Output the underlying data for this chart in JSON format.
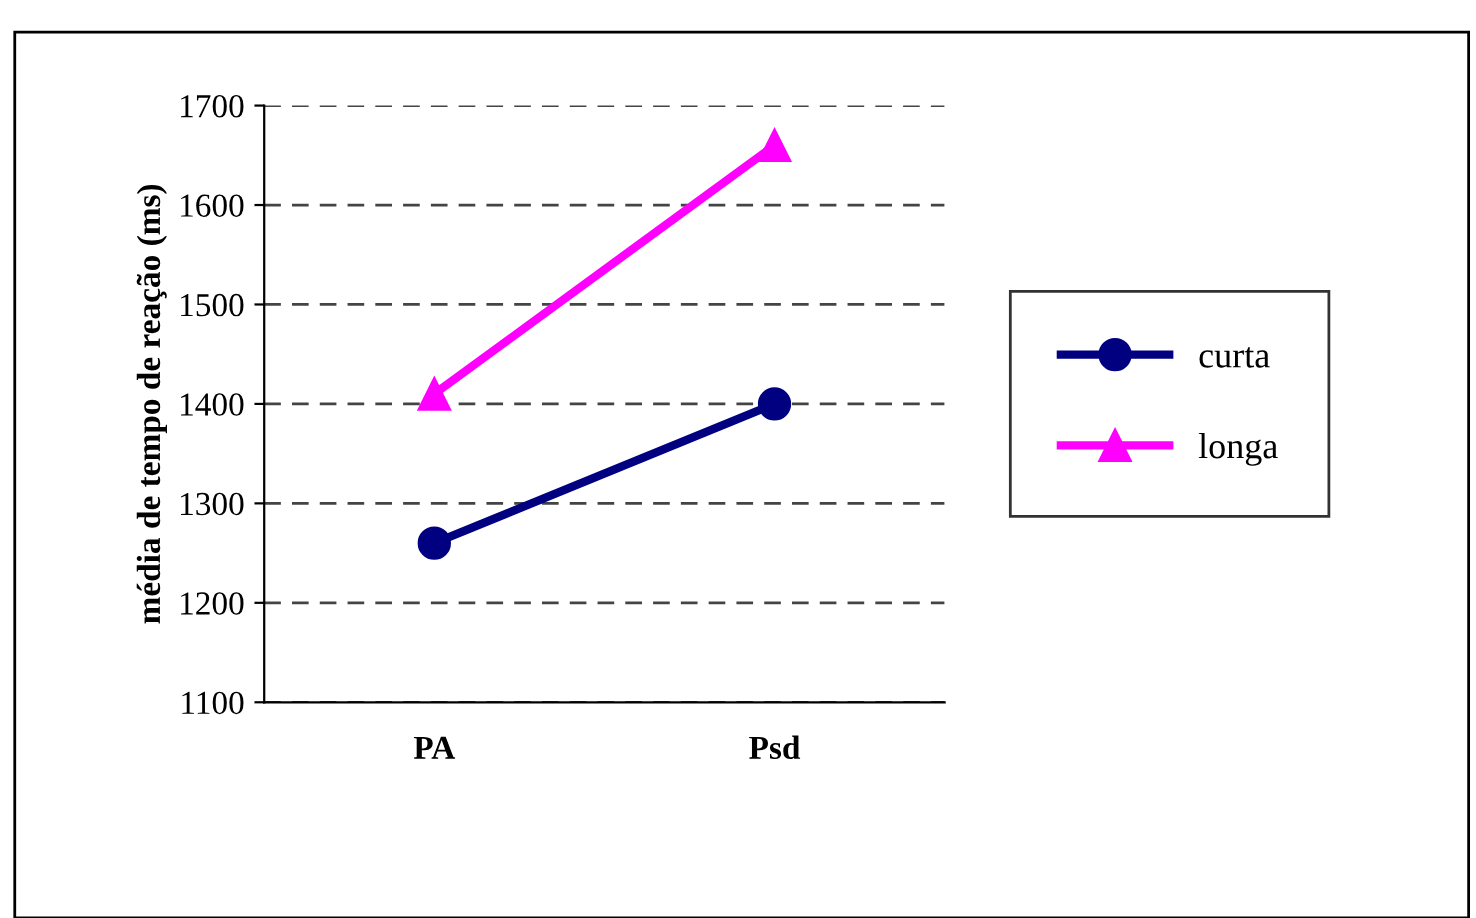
{
  "chart_data": {
    "type": "line",
    "ylabel": "média de tempo de reação (ms)",
    "categories": [
      "PA",
      "Psd"
    ],
    "series": [
      {
        "name": "curta",
        "color": "#000080",
        "values": [
          1260,
          1400
        ],
        "marker": "circle"
      },
      {
        "name": "longa",
        "color": "#ff00ff",
        "values": [
          1410,
          1660
        ],
        "marker": "triangle"
      }
    ],
    "ylim": [
      1100,
      1700
    ],
    "yticks": [
      1100,
      1200,
      1300,
      1400,
      1500,
      1600,
      1700
    ],
    "grid": "y",
    "legend": "right"
  }
}
